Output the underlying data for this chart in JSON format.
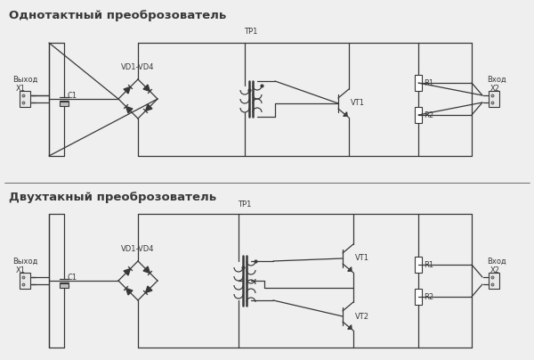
{
  "bg_color": "#efefef",
  "line_color": "#383838",
  "title1": "Однотактный преоброзователь",
  "title2": "Двухтакный преоброзователь",
  "label_vyhod": "Выход",
  "label_vhod": "Вход",
  "label_x1": "X1",
  "label_x2": "X2",
  "label_c1": "C1",
  "label_vd": "VD1-VD4",
  "label_tp1": "TP1",
  "label_vt1": "VT1",
  "label_vt2": "VT2",
  "label_r1": "R1",
  "label_r2": "R2",
  "font_title": 9.5,
  "font_label": 6.0,
  "fig_w": 6.0,
  "fig_h": 4.04,
  "dpi": 100
}
